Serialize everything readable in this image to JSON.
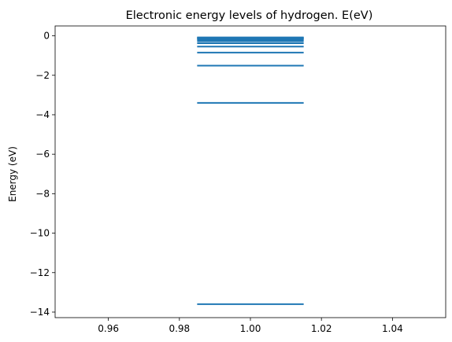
{
  "chart_data": {
    "type": "hlines",
    "title": "Electronic energy levels of hydrogen. E(eV)",
    "xlabel": "",
    "ylabel": "Energy (eV)",
    "xlim": [
      0.945,
      1.055
    ],
    "ylim": [
      -14.28,
      0.5
    ],
    "xticks": [
      0.96,
      0.98,
      1.0,
      1.02,
      1.04
    ],
    "xtick_labels": [
      "0.96",
      "0.98",
      "1.00",
      "1.02",
      "1.04"
    ],
    "yticks": [
      0,
      -2,
      -4,
      -6,
      -8,
      -10,
      -12,
      -14
    ],
    "ytick_labels": [
      "0",
      "−2",
      "−4",
      "−6",
      "−8",
      "−10",
      "−12",
      "−14"
    ],
    "line_x_range": [
      0.985,
      1.015
    ],
    "series": [
      {
        "levels": [
          -13.6,
          -3.4,
          -1.511,
          -0.85,
          -0.544,
          -0.378,
          -0.278,
          -0.2125,
          -0.168,
          -0.136,
          -0.1124,
          -0.0944,
          -0.0805
        ],
        "color": "#1f77b4"
      }
    ],
    "grid": false,
    "legend": "none"
  }
}
